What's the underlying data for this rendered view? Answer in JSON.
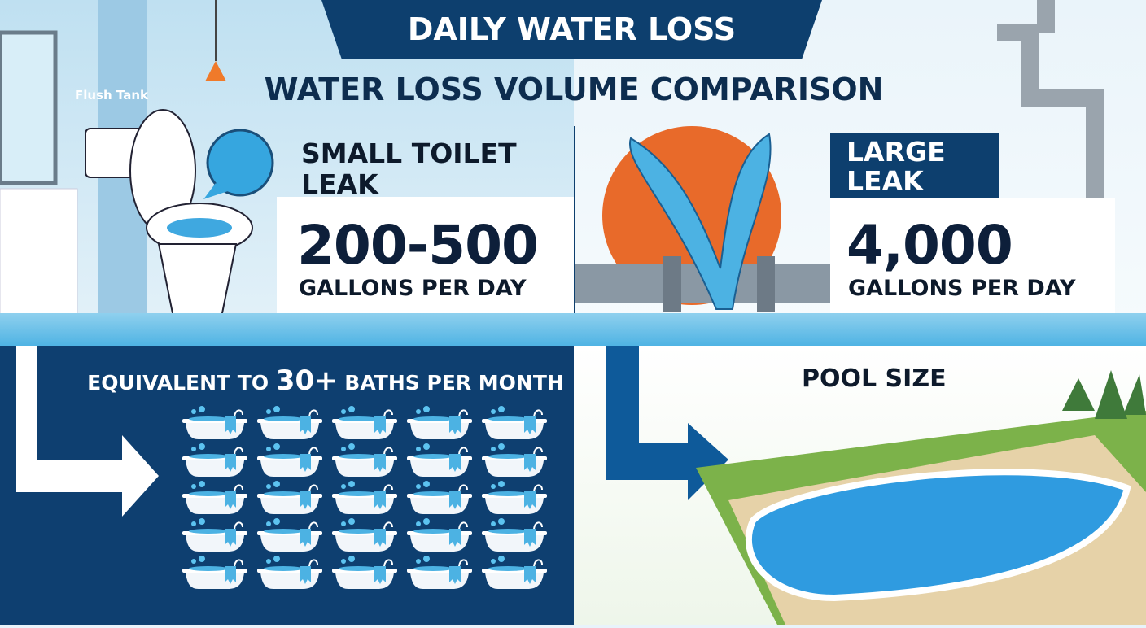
{
  "title": "DAILY WATER LOSS",
  "subtitle": "WATER LOSS VOLUME COMPARISON",
  "bathroom_label": "Flush Tank",
  "small_leak": {
    "label_line1": "SMALL TOILET",
    "label_line2": "LEAK",
    "amount": "200-500",
    "unit": "GALLONS PER DAY"
  },
  "large_leak": {
    "label_line1": "LARGE",
    "label_line2": "LEAK",
    "amount": "4,000",
    "unit": "GALLONS PER DAY"
  },
  "equivalent": {
    "prefix": "EQUIVALENT TO ",
    "number": "30+",
    "suffix": " BATHS PER MONTH",
    "bathtub_count": 25
  },
  "pool": {
    "label": "POOL SIZE"
  },
  "colors": {
    "navy": "#0d3f6e",
    "water": "#4cb2e3",
    "orange": "#e86a2a"
  }
}
